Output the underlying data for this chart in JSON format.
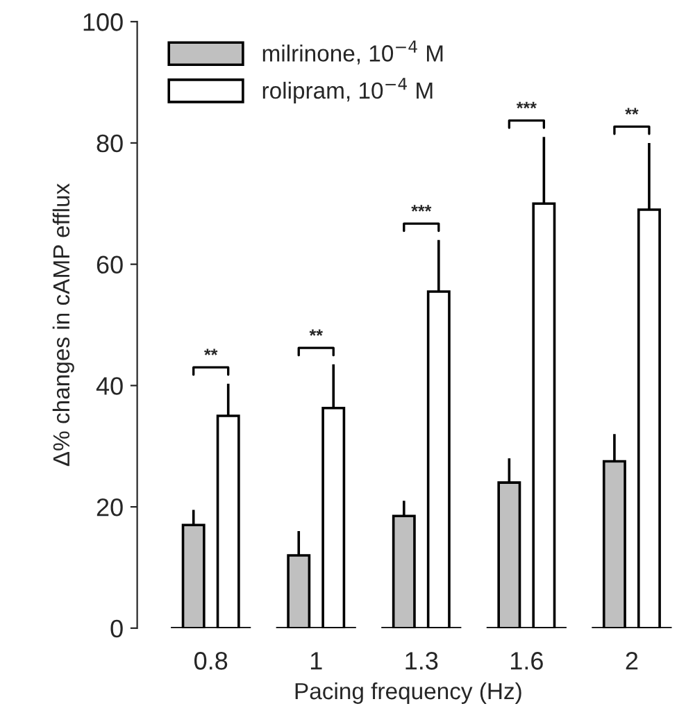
{
  "chart_data": {
    "type": "bar",
    "xlabel": "Pacing frequency (Hz)",
    "ylabel": "Δ% changes in cAMP efflux",
    "categories": [
      "0.8",
      "1",
      "1.3",
      "1.6",
      "2"
    ],
    "series": [
      {
        "name": "milrinone, 10$^{−4}$ M",
        "color": "#c0c0c0",
        "values": [
          17,
          12,
          18.5,
          24,
          27.5
        ],
        "errors": [
          [
            17,
            19.5
          ],
          [
            12,
            16
          ],
          [
            18.5,
            21
          ],
          [
            24,
            28
          ],
          [
            27.5,
            32
          ]
        ]
      },
      {
        "name": "rolipram, 10$^{−4}$ M",
        "color": "#ffffff",
        "values": [
          35,
          36.3,
          55.5,
          70,
          69
        ],
        "errors": [
          [
            35,
            40.3
          ],
          [
            36.3,
            43.5
          ],
          [
            55.5,
            64
          ],
          [
            70,
            81
          ],
          [
            69,
            80
          ]
        ]
      }
    ],
    "annotations": [
      "**",
      "**",
      "***",
      "***",
      "**"
    ],
    "ylim": [
      0,
      100
    ],
    "yticks": [
      0,
      20,
      40,
      60,
      80,
      100
    ],
    "legend": "top left",
    "grid": false
  }
}
